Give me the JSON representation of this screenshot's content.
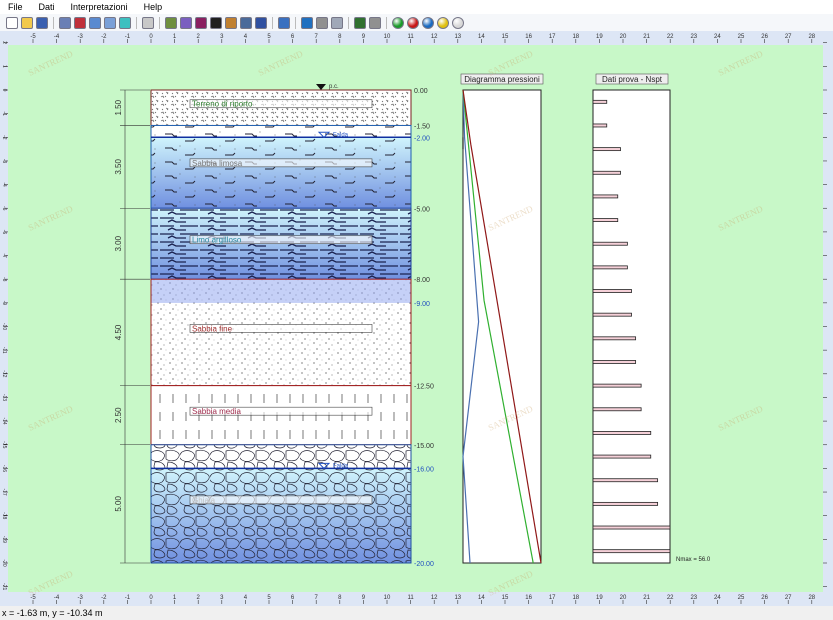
{
  "menu": [
    "File",
    "Dati",
    "Interpretazioni",
    "Help"
  ],
  "toolbar": [
    {
      "icon": "new-file-icon",
      "color": "#ffffff"
    },
    {
      "icon": "open-folder-icon",
      "color": "#f2c94c"
    },
    {
      "icon": "save-icon",
      "color": "#3a5fb0"
    },
    {
      "sep": true
    },
    {
      "icon": "report-icon",
      "color": "#6a7fb5"
    },
    {
      "icon": "image-icon",
      "color": "#c0303a"
    },
    {
      "icon": "edit-doc-icon",
      "color": "#5a8ad0"
    },
    {
      "icon": "edit-icon",
      "color": "#7aa0d8"
    },
    {
      "icon": "flask-icon",
      "color": "#3cc0c0"
    },
    {
      "sep": true
    },
    {
      "icon": "grid-icon",
      "color": "#c8c8c8"
    },
    {
      "sep": true
    },
    {
      "icon": "picture-icon",
      "color": "#6f8f3f"
    },
    {
      "icon": "gear-icon",
      "color": "#7a5fc0"
    },
    {
      "icon": "bar-chart-icon",
      "color": "#8a2060"
    },
    {
      "icon": "table-icon",
      "color": "#202020"
    },
    {
      "icon": "books-icon",
      "color": "#c08030"
    },
    {
      "icon": "window-icon",
      "color": "#4a6a9a"
    },
    {
      "icon": "line-chart-icon",
      "color": "#3050a0"
    },
    {
      "sep": true
    },
    {
      "icon": "export-icon",
      "color": "#3a70c0"
    },
    {
      "sep": true
    },
    {
      "icon": "diamond-icon",
      "color": "#2070c0"
    },
    {
      "icon": "tools-icon",
      "color": "#909090"
    },
    {
      "icon": "document-icon",
      "color": "#a0a8b8"
    },
    {
      "sep": true
    },
    {
      "icon": "chart-tool-icon",
      "color": "#307030"
    },
    {
      "icon": "print-icon",
      "color": "#909090"
    },
    {
      "sep": true
    },
    {
      "icon": "green-ball-icon",
      "color": "#1a9a2a",
      "ball": true
    },
    {
      "icon": "red-ball-icon",
      "color": "#c81818",
      "ball": true
    },
    {
      "icon": "blue-ball-icon",
      "color": "#1a6ac0",
      "ball": true
    },
    {
      "icon": "yellow-ball-icon",
      "color": "#e0c010",
      "ball": true
    },
    {
      "icon": "white-ball-icon",
      "color": "#d8d8d8",
      "ball": true
    }
  ],
  "rulers": {
    "x_range": [
      -5,
      28
    ],
    "y_range": [
      2,
      -21
    ]
  },
  "colors": {
    "background": "#c8f8c8",
    "ruler": "#dde6f5"
  },
  "stratigraphy": {
    "ground_label": "p.c.",
    "water_label": "Falda",
    "water_depths": [
      2.0,
      16.0
    ],
    "layers": [
      {
        "name": "Terreno di riporto",
        "top": 0,
        "bottom": 1.5,
        "thickness": "1.50",
        "pattern": "fill",
        "label_color": "#2a7a2a",
        "border": "#7a2020"
      },
      {
        "name": "Sabbia limosa",
        "top": 1.5,
        "bottom": 5.0,
        "thickness": "3.50",
        "pattern": "silt",
        "label_color": "#777777",
        "border": "#2060b0"
      },
      {
        "name": "Limo argilloso",
        "top": 5.0,
        "bottom": 8.0,
        "thickness": "3.00",
        "pattern": "clay",
        "label_color": "#2a8aa0",
        "border": "#2040a0"
      },
      {
        "name": "Sabbia fine",
        "top": 8.0,
        "bottom": 12.5,
        "thickness": "4.50",
        "pattern": "sand",
        "label_color": "#a03030",
        "border": "#a02020"
      },
      {
        "name": "Sabbia media",
        "top": 12.5,
        "bottom": 15.0,
        "thickness": "2.50",
        "pattern": "medsand",
        "label_color": "#a03050",
        "border": "#a02020"
      },
      {
        "name": "Ghiaia",
        "top": 15.0,
        "bottom": 20.0,
        "thickness": "5.00",
        "pattern": "gravel",
        "label_color": "#c0c0c0",
        "border": "#2050a0"
      }
    ],
    "depth_labels": [
      {
        "text": "0.00",
        "depth": 0,
        "color": "#333333"
      },
      {
        "text": "-1.50",
        "depth": 1.5,
        "color": "#333333"
      },
      {
        "text": "-2.00",
        "depth": 2.0,
        "color": "#2050c0"
      },
      {
        "text": "-5.00",
        "depth": 5.0,
        "color": "#333333"
      },
      {
        "text": "-8.00",
        "depth": 8.0,
        "color": "#333333"
      },
      {
        "text": "-9.00",
        "depth": 9.0,
        "color": "#2050c0"
      },
      {
        "text": "-12.50",
        "depth": 12.5,
        "color": "#333333"
      },
      {
        "text": "-15.00",
        "depth": 15.0,
        "color": "#333333"
      },
      {
        "text": "-16.00",
        "depth": 16.0,
        "color": "#2050c0"
      },
      {
        "text": "-20.00",
        "depth": 20.0,
        "color": "#2050c0"
      }
    ]
  },
  "chart_data": [
    {
      "type": "line",
      "title": "Diagramma pressioni",
      "ylim": [
        0,
        20
      ],
      "series": [
        {
          "color": "#4a70b0",
          "points": [
            [
              0,
              0
            ],
            [
              2,
              0.02
            ],
            [
              9.8,
              0.2
            ],
            [
              15.5,
              0.0
            ],
            [
              20,
              0.09
            ]
          ]
        },
        {
          "color": "#30b030",
          "points": [
            [
              0,
              0
            ],
            [
              8.9,
              0.27
            ],
            [
              20,
              0.9
            ]
          ]
        },
        {
          "color": "#901818",
          "points": [
            [
              0,
              0
            ],
            [
              2.3,
              0.1
            ],
            [
              20,
              1.0
            ]
          ]
        },
        {
          "color": "#202020",
          "points": [
            [
              2,
              0
            ],
            [
              2.5,
              0
            ]
          ]
        }
      ]
    },
    {
      "type": "bar",
      "title": "Dati prova - Nspt",
      "orientation": "horizontal",
      "depths": [
        0.5,
        1.5,
        2.5,
        3.5,
        4.5,
        5.5,
        6.5,
        7.5,
        8.5,
        9.5,
        10.5,
        11.5,
        12.5,
        13.5,
        14.5,
        15.5,
        16.5,
        17.5,
        18.5,
        19.5
      ],
      "values": [
        10,
        10,
        20,
        20,
        18,
        18,
        25,
        25,
        28,
        28,
        31,
        31,
        35,
        35,
        42,
        42,
        47,
        47,
        56,
        56
      ],
      "xlim": [
        0,
        56
      ],
      "annotation": "Nmax = 56.0",
      "bar_color": "#f5d0d8"
    }
  ],
  "watermark": "SANTREND",
  "status": "x = -1.63 m, y = -10.34 m"
}
